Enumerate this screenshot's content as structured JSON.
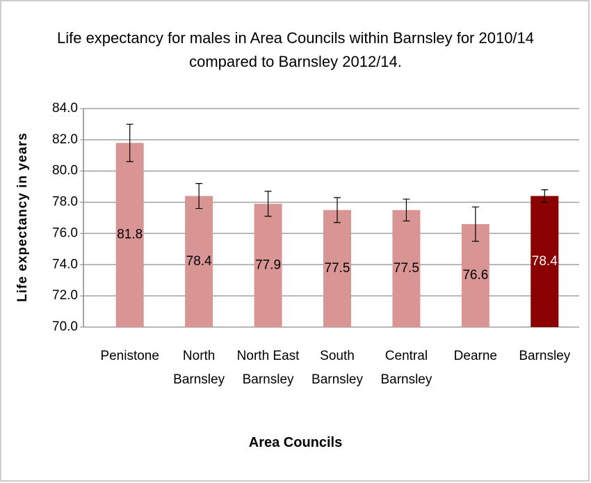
{
  "chart_data": {
    "type": "bar",
    "title": "Life expectancy for males in Area Councils within Barnsley for 2010/14 compared to Barnsley 2012/14.",
    "x_label": "Area Councils",
    "y_label": "Life expectancy in years",
    "categories": [
      "Penistone",
      "North Barnsley",
      "North East Barnsley",
      "South Barnsley",
      "Central Barnsley",
      "Dearne",
      "Barnsley"
    ],
    "values": [
      81.8,
      78.4,
      77.9,
      77.5,
      77.5,
      76.6,
      78.4
    ],
    "errors": [
      1.2,
      0.8,
      0.8,
      0.8,
      0.7,
      1.1,
      0.4
    ],
    "colors": [
      "#d99594",
      "#d99594",
      "#d99594",
      "#d99594",
      "#d99594",
      "#d99594",
      "#8b0000"
    ],
    "label_colors": [
      "#000000",
      "#000000",
      "#000000",
      "#000000",
      "#000000",
      "#000000",
      "#ffffff"
    ],
    "ylim": [
      70,
      84
    ],
    "yticks": [
      {
        "value": 70,
        "label": "70.0"
      },
      {
        "value": 72,
        "label": "72.0"
      },
      {
        "value": 74,
        "label": "74.0"
      },
      {
        "value": 76,
        "label": "76.0"
      },
      {
        "value": 78,
        "label": "78.0"
      },
      {
        "value": 80,
        "label": "80.0"
      },
      {
        "value": 82,
        "label": "82.0"
      },
      {
        "value": 84,
        "label": "84.0"
      }
    ],
    "grid": true
  }
}
